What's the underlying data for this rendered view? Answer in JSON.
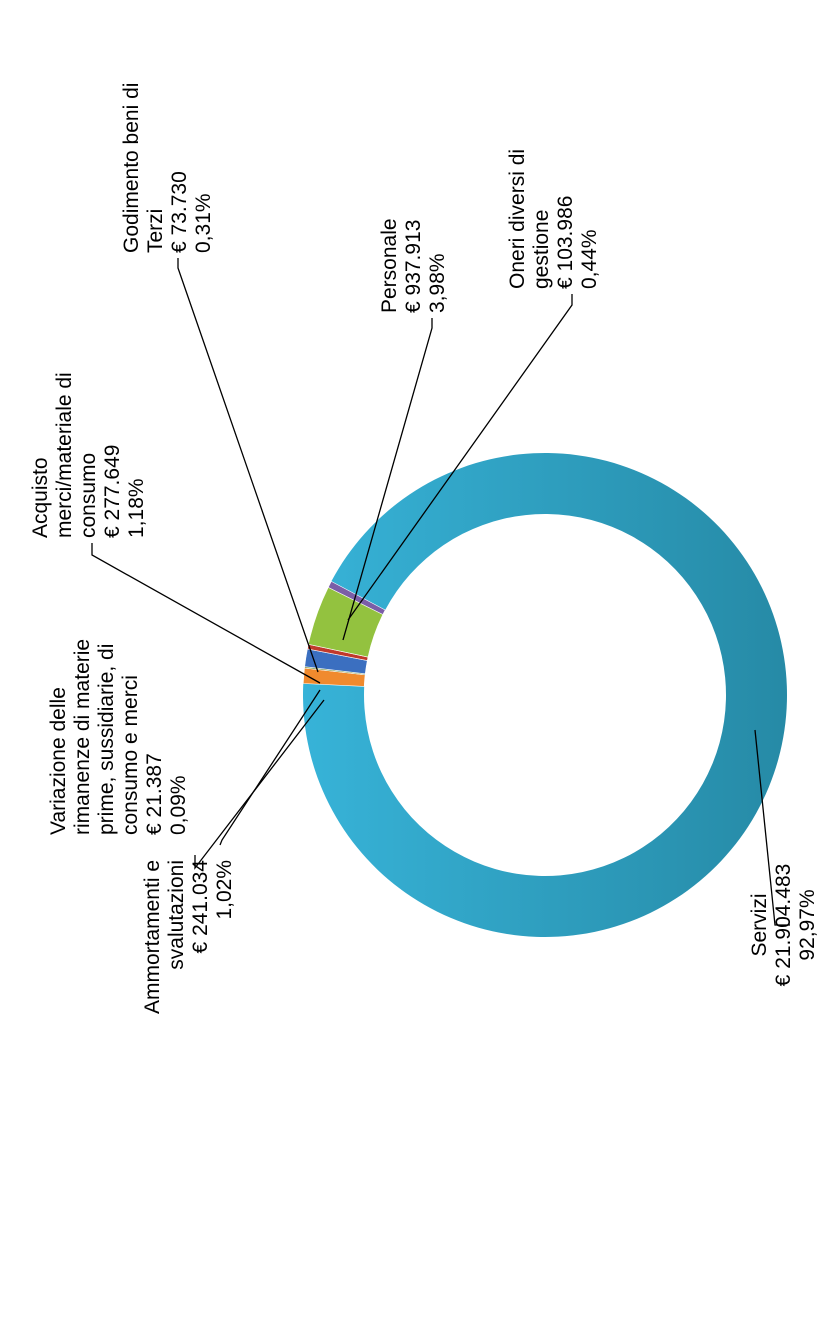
{
  "chart_data": {
    "type": "pie",
    "variant": "donut",
    "rotation": "rotated 90° counter-clockwise",
    "slices": [
      {
        "name": "Servizi",
        "amount": "€ 21.904.483",
        "pct": "92,97%",
        "value": 92.97,
        "color": "#31a6c9"
      },
      {
        "name": "Ammortamenti e svalutazioni",
        "amount": "€ 241.034",
        "pct": "1,02%",
        "value": 1.02,
        "color": "#f08a2e"
      },
      {
        "name": "Variazione delle rimanenze di materie prime, sussidiarie, di consumo e merci",
        "amount": "€ 21.387",
        "pct": "0,09%",
        "value": 0.09,
        "color": "#6f8f3a"
      },
      {
        "name": "Acquisto merci/materiale di consumo",
        "amount": "€ 277.649",
        "pct": "1,18%",
        "value": 1.18,
        "color": "#3b6fc0"
      },
      {
        "name": "Godimento beni di Terzi",
        "amount": "€ 73.730",
        "pct": "0,31%",
        "value": 0.31,
        "color": "#c0392b"
      },
      {
        "name": "Personale",
        "amount": "€ 937.913",
        "pct": "3,98%",
        "value": 3.98,
        "color": "#93c23f"
      },
      {
        "name": "Oneri diversi di gestione",
        "amount": "€ 103.986",
        "pct": "0,44%",
        "value": 0.44,
        "color": "#7b5ea7"
      }
    ],
    "labels": {
      "servizi": [
        "Servizi",
        "€ 21.904.483",
        "92,97%"
      ],
      "ammortamenti": [
        "Ammortamenti e",
        "svalutazioni",
        "€ 241.034",
        "1,02%"
      ],
      "variazione": [
        "Variazione delle",
        "rimanenze di materie",
        "prime, sussidiarie, di",
        "consumo e merci",
        "€ 21.387",
        "0,09%"
      ],
      "acquisto": [
        "Acquisto",
        "merci/materiale di",
        "consumo",
        "€ 277.649",
        "1,18%"
      ],
      "godimento": [
        "Godimento beni di",
        "Terzi",
        "€ 73.730",
        "0,31%"
      ],
      "personale": [
        "Personale",
        "€ 937.913",
        "3,98%"
      ],
      "oneri": [
        "Oneri diversi di",
        "gestione",
        "€ 103.986",
        "0,44%"
      ]
    }
  }
}
